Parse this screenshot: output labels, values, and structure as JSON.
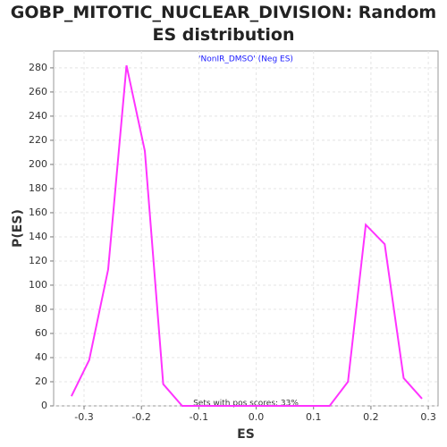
{
  "chart_data": {
    "type": "line",
    "title": "GOBP_MITOTIC_NUCLEAR_DIVISION: Random ES distribution",
    "annotations": [
      "'NonIR_DMSO' (Neg ES)",
      "Sets with pos scores: 33%"
    ],
    "xlabel": "ES",
    "ylabel": "P(ES)",
    "x": [
      -0.322,
      -0.291,
      -0.258,
      -0.226,
      -0.194,
      -0.162,
      -0.129,
      -0.097,
      -0.065,
      -0.032,
      0,
      0.032,
      0.065,
      0.097,
      0.128,
      0.16,
      0.191,
      0.224,
      0.257,
      0.289
    ],
    "series": [
      {
        "name": "P(ES)",
        "color": "#ff33ff",
        "values": [
          8,
          38,
          113,
          282,
          211,
          18,
          0,
          0,
          0,
          0,
          0,
          0,
          0,
          0,
          0,
          20,
          150,
          134,
          23,
          6
        ]
      }
    ],
    "xlim": [
      -0.353,
      0.317
    ],
    "ylim": [
      0,
      294
    ],
    "xticks": [
      -0.3,
      -0.2,
      -0.1,
      {
        "value": 0,
        "label": "0.0"
      },
      0.1,
      0.2,
      0.3
    ],
    "yticks": [
      0,
      20,
      40,
      60,
      80,
      100,
      120,
      140,
      160,
      180,
      200,
      220,
      240,
      260,
      280
    ],
    "grid": true
  }
}
